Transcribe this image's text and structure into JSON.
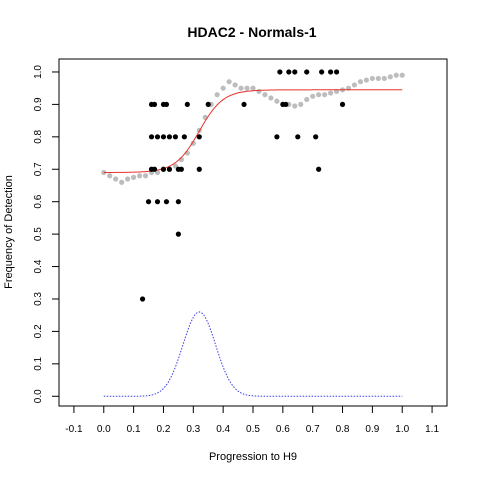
{
  "chart_data": {
    "type": "scatter",
    "title": "HDAC2 - Normals-1",
    "xlabel": "Progression to H9",
    "ylabel": "Frequency of Detection",
    "xlim": [
      -0.15,
      1.15
    ],
    "ylim": [
      -0.03,
      1.04
    ],
    "x_ticks": [
      -0.1,
      0.0,
      0.1,
      0.2,
      0.3,
      0.4,
      0.5,
      0.6,
      0.7,
      0.8,
      0.9,
      1.0,
      1.1
    ],
    "x_tick_labels": [
      "-0.1",
      "0.0",
      "0.1",
      "0.2",
      "0.3",
      "0.4",
      "0.5",
      "0.6",
      "0.7",
      "0.8",
      "0.9",
      "1.0",
      "1.1"
    ],
    "y_ticks": [
      0.0,
      0.1,
      0.2,
      0.3,
      0.4,
      0.5,
      0.6,
      0.7,
      0.8,
      0.9,
      1.0
    ],
    "y_tick_labels": [
      "0.0",
      "0.1",
      "0.2",
      "0.3",
      "0.4",
      "0.5",
      "0.6",
      "0.7",
      "0.8",
      "0.9",
      "1.0"
    ],
    "grid": false,
    "series": [
      {
        "kind": "points",
        "color": "#000000",
        "points": [
          [
            0.13,
            0.3
          ],
          [
            0.15,
            0.6
          ],
          [
            0.16,
            0.7
          ],
          [
            0.16,
            0.8
          ],
          [
            0.16,
            0.9
          ],
          [
            0.17,
            0.7
          ],
          [
            0.17,
            0.9
          ],
          [
            0.18,
            0.8
          ],
          [
            0.18,
            0.6
          ],
          [
            0.2,
            0.7
          ],
          [
            0.2,
            0.8
          ],
          [
            0.2,
            0.9
          ],
          [
            0.21,
            0.6
          ],
          [
            0.21,
            0.9
          ],
          [
            0.22,
            0.7
          ],
          [
            0.22,
            0.8
          ],
          [
            0.24,
            0.8
          ],
          [
            0.25,
            0.6
          ],
          [
            0.25,
            0.5
          ],
          [
            0.25,
            0.7
          ],
          [
            0.26,
            0.7
          ],
          [
            0.27,
            0.8
          ],
          [
            0.28,
            0.9
          ],
          [
            0.32,
            0.7
          ],
          [
            0.32,
            0.8
          ],
          [
            0.35,
            0.9
          ],
          [
            0.47,
            0.9
          ],
          [
            0.58,
            0.8
          ],
          [
            0.59,
            1.0
          ],
          [
            0.6,
            0.9
          ],
          [
            0.61,
            0.9
          ],
          [
            0.62,
            1.0
          ],
          [
            0.64,
            1.0
          ],
          [
            0.65,
            0.8
          ],
          [
            0.68,
            1.0
          ],
          [
            0.71,
            0.8
          ],
          [
            0.72,
            0.7
          ],
          [
            0.73,
            1.0
          ],
          [
            0.76,
            1.0
          ],
          [
            0.78,
            1.0
          ],
          [
            0.8,
            0.9
          ]
        ]
      },
      {
        "kind": "smoothed",
        "color": "#bdbdbd",
        "points": [
          [
            0.0,
            0.69
          ],
          [
            0.02,
            0.68
          ],
          [
            0.04,
            0.67
          ],
          [
            0.06,
            0.66
          ],
          [
            0.08,
            0.67
          ],
          [
            0.1,
            0.675
          ],
          [
            0.12,
            0.68
          ],
          [
            0.14,
            0.68
          ],
          [
            0.16,
            0.69
          ],
          [
            0.18,
            0.69
          ],
          [
            0.2,
            0.7
          ],
          [
            0.22,
            0.7
          ],
          [
            0.24,
            0.71
          ],
          [
            0.26,
            0.73
          ],
          [
            0.28,
            0.75
          ],
          [
            0.3,
            0.78
          ],
          [
            0.32,
            0.82
          ],
          [
            0.34,
            0.86
          ],
          [
            0.36,
            0.9
          ],
          [
            0.38,
            0.93
          ],
          [
            0.4,
            0.95
          ],
          [
            0.42,
            0.97
          ],
          [
            0.44,
            0.96
          ],
          [
            0.46,
            0.95
          ],
          [
            0.48,
            0.95
          ],
          [
            0.5,
            0.95
          ],
          [
            0.52,
            0.94
          ],
          [
            0.54,
            0.93
          ],
          [
            0.56,
            0.92
          ],
          [
            0.58,
            0.91
          ],
          [
            0.6,
            0.9
          ],
          [
            0.62,
            0.9
          ],
          [
            0.64,
            0.895
          ],
          [
            0.66,
            0.9
          ],
          [
            0.68,
            0.915
          ],
          [
            0.7,
            0.925
          ],
          [
            0.72,
            0.93
          ],
          [
            0.74,
            0.93
          ],
          [
            0.76,
            0.935
          ],
          [
            0.78,
            0.94
          ],
          [
            0.8,
            0.945
          ],
          [
            0.82,
            0.95
          ],
          [
            0.84,
            0.96
          ],
          [
            0.86,
            0.97
          ],
          [
            0.88,
            0.975
          ],
          [
            0.9,
            0.98
          ],
          [
            0.92,
            0.98
          ],
          [
            0.94,
            0.98
          ],
          [
            0.96,
            0.985
          ],
          [
            0.98,
            0.99
          ],
          [
            1.0,
            0.99
          ]
        ]
      },
      {
        "kind": "fit-curve",
        "color": "#e8322c",
        "curve": "logistic",
        "lower": 0.69,
        "upper": 0.945,
        "midpoint": 0.32,
        "slope": 0.04,
        "x_range": [
          0.0,
          1.0
        ]
      },
      {
        "kind": "density-curve",
        "color": "#3a3ae8",
        "curve": "gaussian",
        "peak": 0.26,
        "mean": 0.32,
        "sd": 0.055,
        "x_range": [
          0.0,
          1.0
        ]
      }
    ]
  }
}
